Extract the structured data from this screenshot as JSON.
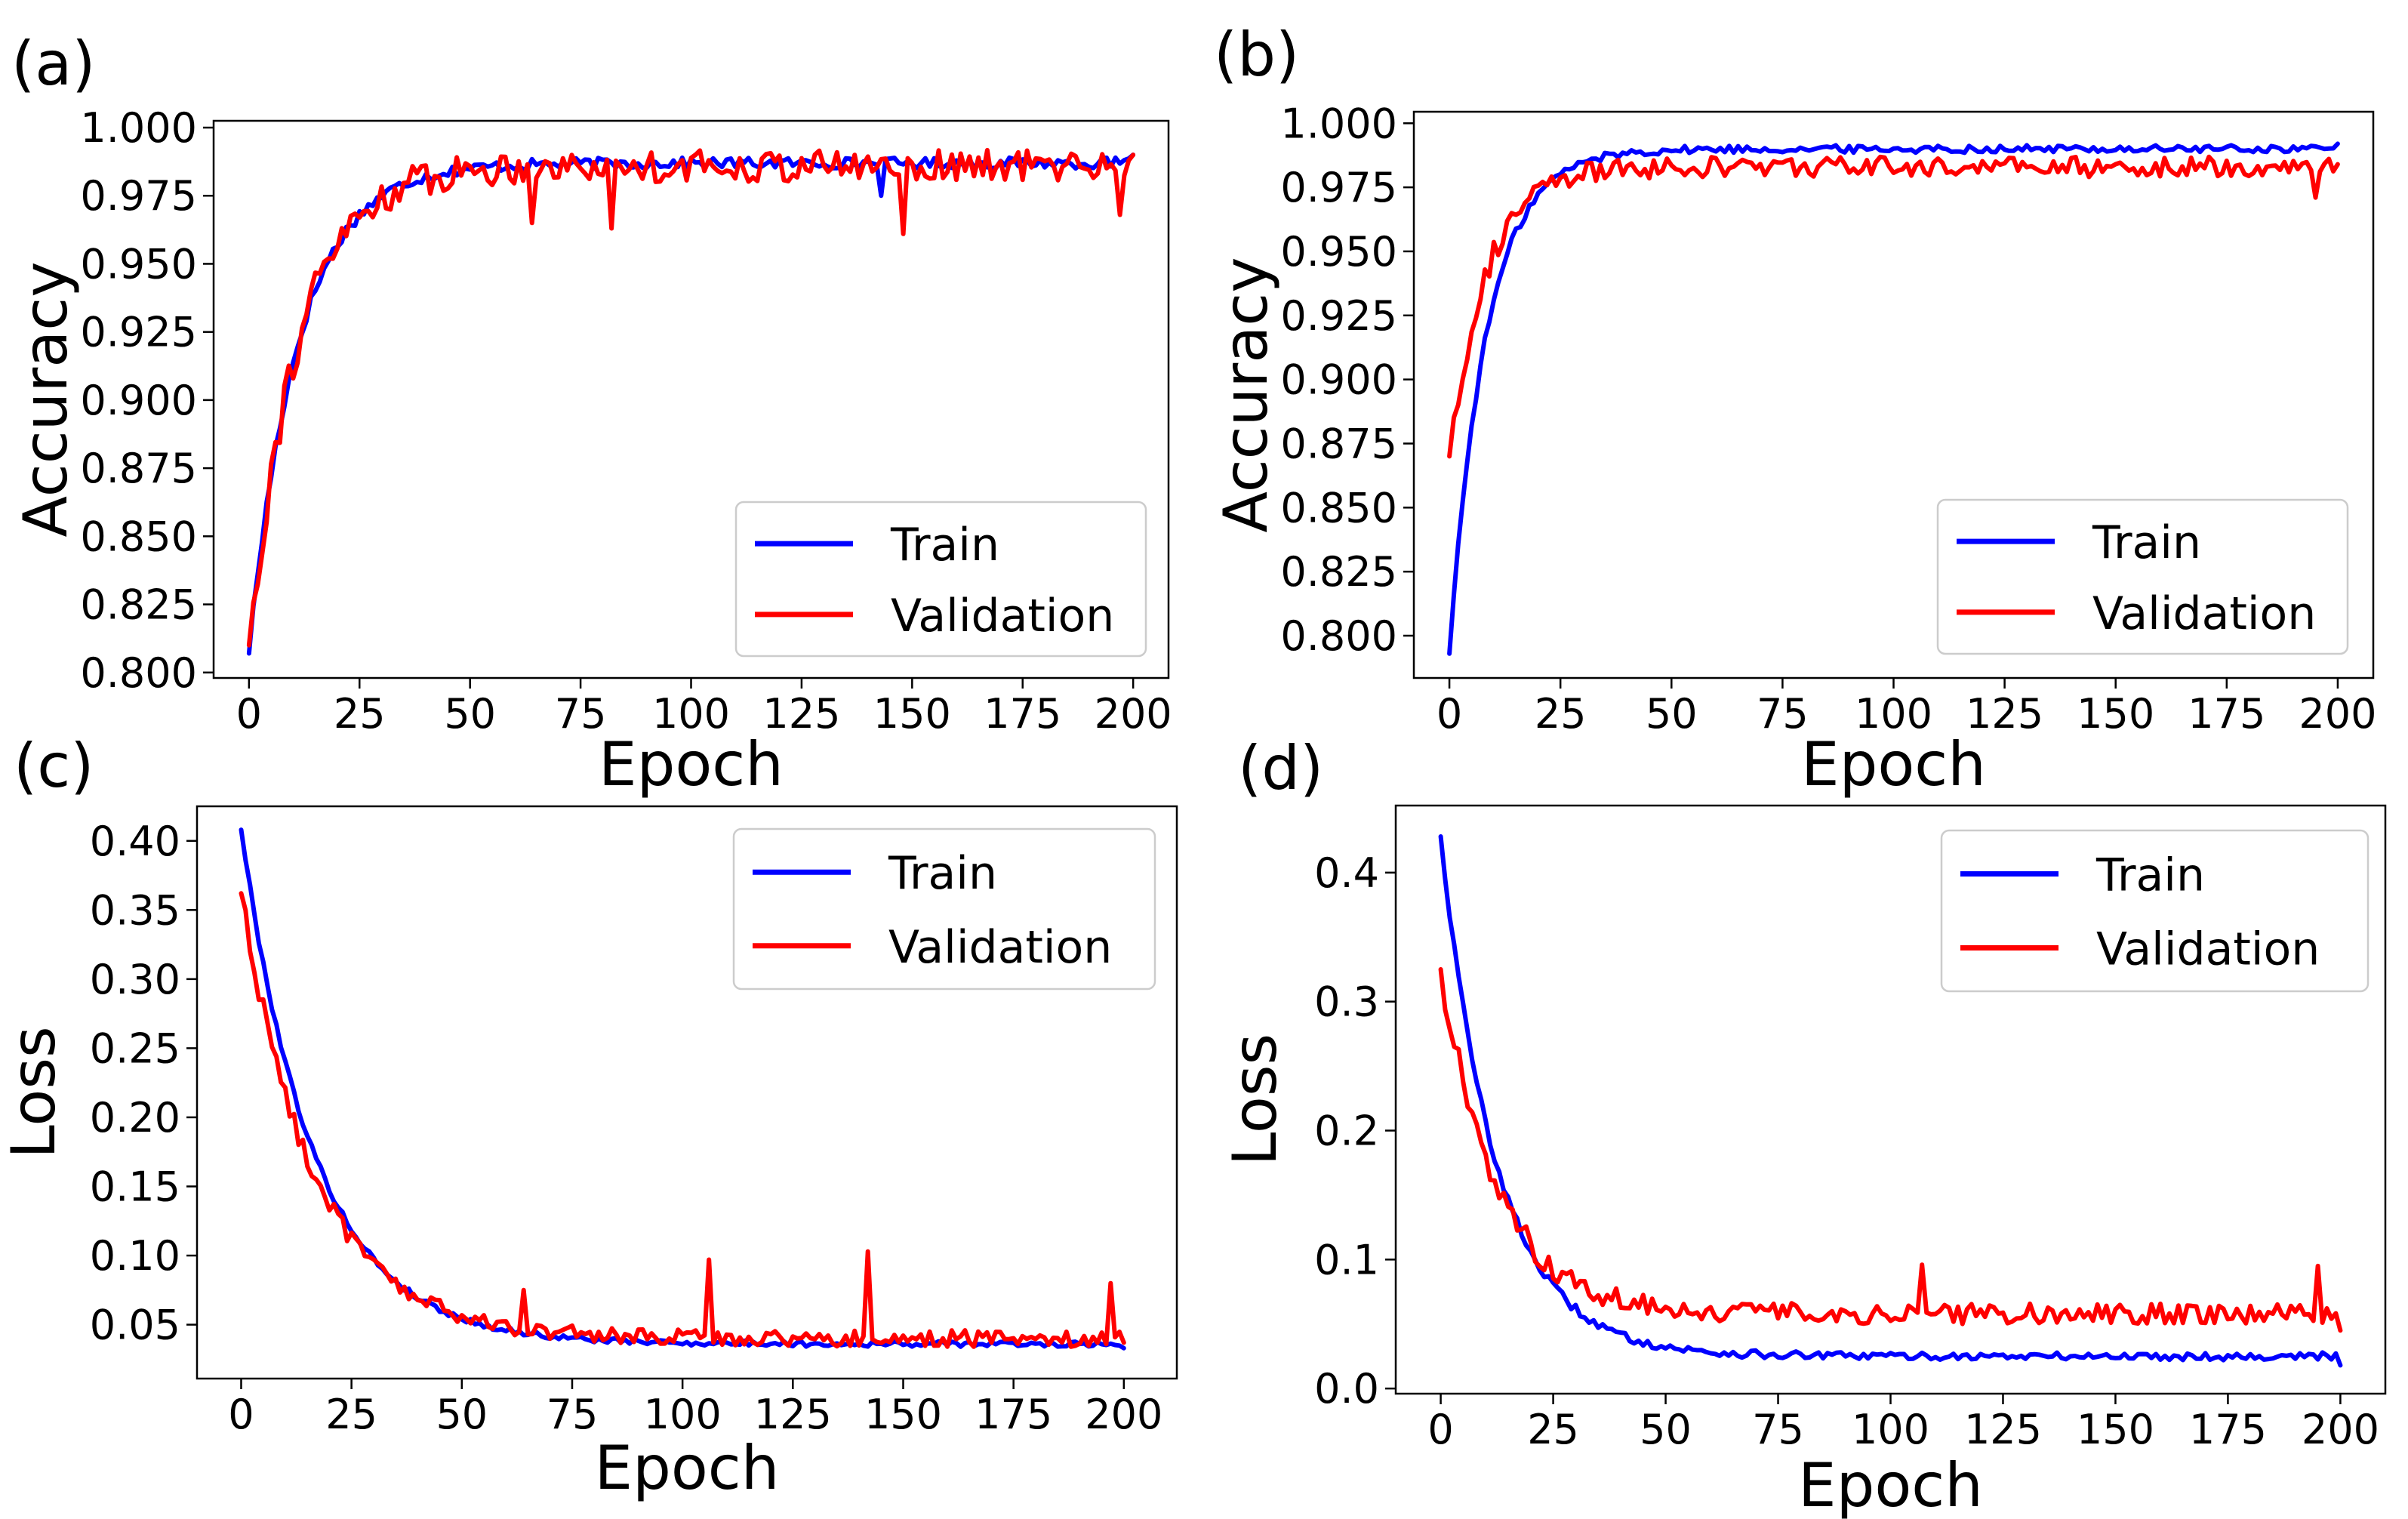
{
  "chart_data": [
    {
      "panel_label": "(a)",
      "type": "line",
      "xlabel": "Epoch",
      "ylabel": "Accuracy",
      "xlim": [
        -8,
        208
      ],
      "ylim": [
        0.798,
        1.0025
      ],
      "xticks": [
        0,
        25,
        50,
        75,
        100,
        125,
        150,
        175,
        200
      ],
      "yticks": [
        0.8,
        0.825,
        0.85,
        0.875,
        0.9,
        0.925,
        0.95,
        0.975,
        1.0
      ],
      "ytick_decimals": 3,
      "grid": false,
      "legend_position": "lower-right",
      "curve_shape": {
        "train": {
          "start": 0.807,
          "end": 0.99,
          "rate": 0.09,
          "plateau": 0.987,
          "noise": 0.002
        },
        "validation": {
          "start": 0.81,
          "end": 0.99,
          "rate": 0.09,
          "plateau": 0.986,
          "noise": 0.006
        },
        "val_spikes": [
          [
            64,
            0.965
          ],
          [
            82,
            0.963
          ],
          [
            148,
            0.961
          ],
          [
            197,
            0.968
          ]
        ],
        "train_spikes": [
          [
            143,
            0.975
          ]
        ]
      },
      "series": [
        {
          "name": "Train",
          "color": "#0000ff"
        },
        {
          "name": "Validation",
          "color": "#ff0000"
        }
      ]
    },
    {
      "panel_label": "(b)",
      "type": "line",
      "xlabel": "Epoch",
      "ylabel": "Accuracy",
      "xlim": [
        -8,
        208
      ],
      "ylim": [
        0.7835,
        1.0045
      ],
      "xticks": [
        0,
        25,
        50,
        75,
        100,
        125,
        150,
        175,
        200
      ],
      "yticks": [
        0.8,
        0.825,
        0.85,
        0.875,
        0.9,
        0.925,
        0.95,
        0.975,
        1.0
      ],
      "ytick_decimals": 3,
      "grid": false,
      "legend_position": "lower-right",
      "curve_shape": {
        "train": {
          "start": 0.793,
          "end": 0.992,
          "rate": 0.12,
          "plateau": 0.99,
          "noise": 0.0015
        },
        "validation": {
          "start": 0.87,
          "end": 0.984,
          "rate": 0.12,
          "plateau": 0.983,
          "noise": 0.004
        },
        "val_spikes": [
          [
            195,
            0.971
          ]
        ],
        "train_spikes": []
      },
      "series": [
        {
          "name": "Train",
          "color": "#0000ff"
        },
        {
          "name": "Validation",
          "color": "#ff0000"
        }
      ]
    },
    {
      "panel_label": "(c)",
      "type": "line",
      "xlabel": "Epoch",
      "ylabel": "Loss",
      "xlim": [
        -10,
        212
      ],
      "ylim": [
        0.011,
        0.425
      ],
      "xticks": [
        0,
        25,
        50,
        75,
        100,
        125,
        150,
        175,
        200
      ],
      "yticks": [
        0.05,
        0.1,
        0.15,
        0.2,
        0.25,
        0.3,
        0.35,
        0.4
      ],
      "ytick_decimals": 2,
      "grid": false,
      "legend_position": "upper-right",
      "curve_shape": {
        "train": {
          "start": 0.408,
          "end": 0.033,
          "rate": 0.06,
          "plateau": 0.036,
          "noise": 0.002
        },
        "validation": {
          "start": 0.362,
          "end": 0.037,
          "rate": 0.06,
          "plateau": 0.04,
          "noise": 0.006
        },
        "val_spikes": [
          [
            64,
            0.075
          ],
          [
            106,
            0.097
          ],
          [
            142,
            0.103
          ],
          [
            197,
            0.08
          ]
        ],
        "train_spikes": []
      },
      "series": [
        {
          "name": "Train",
          "color": "#0000ff"
        },
        {
          "name": "Validation",
          "color": "#ff0000"
        }
      ]
    },
    {
      "panel_label": "(d)",
      "type": "line",
      "xlabel": "Epoch",
      "ylabel": "Loss",
      "xlim": [
        -10,
        210
      ],
      "ylim": [
        -0.004,
        0.452
      ],
      "xticks": [
        0,
        25,
        50,
        75,
        100,
        125,
        150,
        175,
        200
      ],
      "yticks": [
        0.0,
        0.1,
        0.2,
        0.3,
        0.4
      ],
      "ytick_decimals": 1,
      "grid": false,
      "legend_position": "upper-right",
      "curve_shape": {
        "train": {
          "start": 0.428,
          "end": 0.018,
          "rate": 0.08,
          "plateau": 0.025,
          "noise": 0.003
        },
        "validation": {
          "start": 0.325,
          "end": 0.045,
          "rate": 0.08,
          "plateau": 0.058,
          "noise": 0.008
        },
        "val_spikes": [
          [
            107,
            0.096
          ],
          [
            195,
            0.095
          ]
        ],
        "train_spikes": []
      },
      "series": [
        {
          "name": "Train",
          "color": "#0000ff"
        },
        {
          "name": "Validation",
          "color": "#ff0000"
        }
      ]
    }
  ]
}
